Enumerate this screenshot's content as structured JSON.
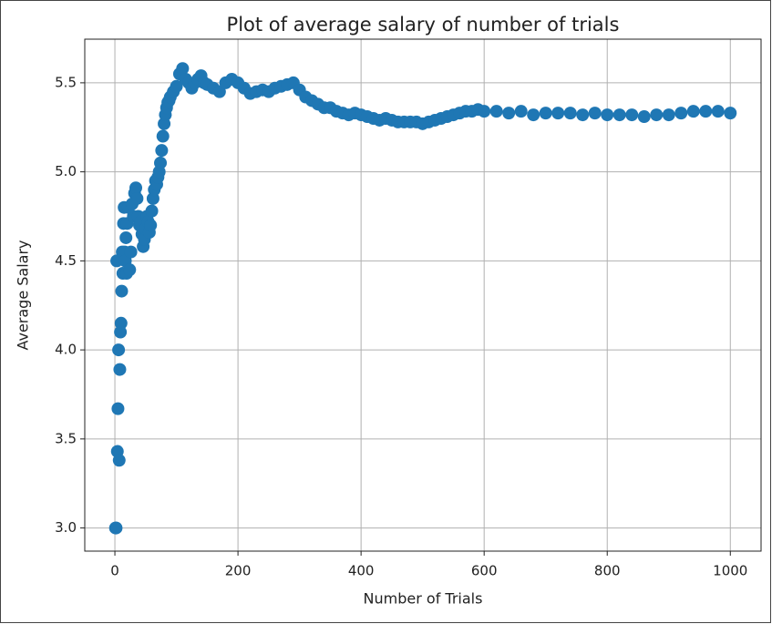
{
  "chart_data": {
    "type": "scatter",
    "title": "Plot of average salary of number of trials",
    "x_label": "Number of Trials",
    "y_label": "Average Salary",
    "color": "#1f77b4",
    "grid": true,
    "xlim": [
      -48.95,
      1049.95
    ],
    "ylim": [
      2.87,
      5.745
    ],
    "xticks": [
      0,
      200,
      400,
      600,
      800,
      1000
    ],
    "yticks": [
      {
        "value": 3.0,
        "label": "3.0"
      },
      3.5,
      {
        "value": 4.0,
        "label": "4.0"
      },
      4.5,
      {
        "value": 5.0,
        "label": "5.0"
      },
      5.5
    ],
    "x": [
      1,
      2,
      3,
      4,
      5,
      6,
      7,
      8,
      9,
      10,
      11,
      12,
      13,
      14,
      15,
      16,
      17,
      18,
      19,
      20,
      22,
      24,
      26,
      28,
      30,
      32,
      34,
      36,
      38,
      40,
      42,
      44,
      46,
      48,
      50,
      52,
      54,
      56,
      58,
      60,
      62,
      64,
      66,
      68,
      70,
      72,
      74,
      76,
      78,
      80,
      82,
      84,
      86,
      88,
      90,
      95,
      100,
      105,
      110,
      115,
      120,
      125,
      130,
      135,
      140,
      145,
      150,
      160,
      170,
      180,
      190,
      200,
      210,
      220,
      230,
      240,
      250,
      260,
      270,
      280,
      290,
      300,
      310,
      320,
      330,
      340,
      350,
      360,
      370,
      380,
      390,
      400,
      410,
      420,
      430,
      440,
      450,
      460,
      470,
      480,
      490,
      500,
      510,
      520,
      530,
      540,
      550,
      560,
      570,
      580,
      590,
      600,
      620,
      640,
      660,
      680,
      700,
      720,
      740,
      760,
      780,
      800,
      820,
      840,
      860,
      880,
      900,
      920,
      940,
      960,
      980,
      1000
    ],
    "values": [
      3.0,
      3.0,
      4.5,
      3.43,
      3.67,
      4.0,
      3.38,
      3.89,
      4.1,
      4.15,
      4.33,
      4.55,
      4.43,
      4.71,
      4.8,
      4.55,
      4.5,
      4.63,
      4.43,
      4.71,
      4.8,
      4.45,
      4.55,
      4.82,
      4.75,
      4.88,
      4.91,
      4.85,
      4.75,
      4.7,
      4.72,
      4.65,
      4.58,
      4.62,
      4.68,
      4.75,
      4.72,
      4.66,
      4.7,
      4.78,
      4.85,
      4.9,
      4.95,
      4.93,
      4.97,
      5.0,
      5.05,
      5.12,
      5.2,
      5.27,
      5.32,
      5.36,
      5.39,
      5.4,
      5.42,
      5.45,
      5.48,
      5.55,
      5.58,
      5.52,
      5.5,
      5.47,
      5.5,
      5.52,
      5.54,
      5.5,
      5.49,
      5.47,
      5.45,
      5.5,
      5.52,
      5.5,
      5.47,
      5.44,
      5.45,
      5.46,
      5.45,
      5.47,
      5.48,
      5.49,
      5.5,
      5.46,
      5.42,
      5.4,
      5.38,
      5.36,
      5.36,
      5.34,
      5.33,
      5.32,
      5.33,
      5.32,
      5.31,
      5.3,
      5.29,
      5.3,
      5.29,
      5.28,
      5.28,
      5.28,
      5.28,
      5.27,
      5.28,
      5.29,
      5.3,
      5.31,
      5.32,
      5.33,
      5.34,
      5.34,
      5.35,
      5.34,
      5.34,
      5.33,
      5.34,
      5.32,
      5.33,
      5.33,
      5.33,
      5.32,
      5.33,
      5.32,
      5.32,
      5.32,
      5.31,
      5.32,
      5.32,
      5.33,
      5.34,
      5.34,
      5.34,
      5.33
    ]
  }
}
